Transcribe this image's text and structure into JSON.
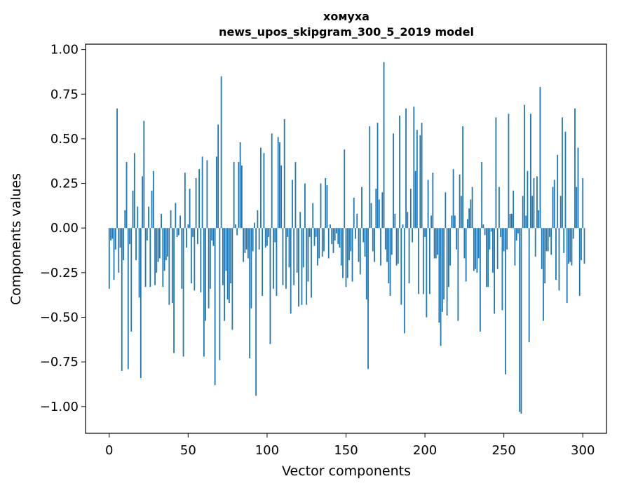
{
  "chart_data": {
    "type": "bar",
    "title_line1": "хомуха",
    "title_line2": "news_upos_skipgram_300_5_2019 model",
    "xlabel": "Vector components",
    "ylabel": "Components values",
    "xlim": [
      -15,
      315
    ],
    "ylim": [
      -1.15,
      1.03
    ],
    "xticks": [
      0,
      50,
      100,
      150,
      200,
      250,
      300
    ],
    "xtick_labels": [
      "0",
      "50",
      "100",
      "150",
      "200",
      "250",
      "300"
    ],
    "yticks": [
      1.0,
      0.75,
      0.5,
      0.25,
      0.0,
      -0.25,
      -0.5,
      -0.75,
      -1.0
    ],
    "ytick_labels": [
      "1.00",
      "0.75",
      "0.50",
      "0.25",
      "0.00",
      "−0.25",
      "−0.50",
      "−0.75",
      "−1.00"
    ],
    "bar_color": "#1f77b4",
    "values": [
      -0.34,
      -0.07,
      -0.06,
      -0.29,
      -0.12,
      0.67,
      -0.25,
      -0.11,
      -0.8,
      -0.18,
      0.1,
      0.37,
      -0.79,
      -0.09,
      -0.58,
      0.21,
      0.42,
      -0.18,
      0.12,
      -0.39,
      -0.84,
      0.29,
      0.6,
      -0.33,
      -0.07,
      0.12,
      -0.33,
      0.21,
      0.32,
      -0.32,
      -0.25,
      -0.19,
      -0.17,
      0.08,
      -0.33,
      -0.24,
      -0.18,
      -0.16,
      -0.43,
      0.1,
      -0.42,
      -0.7,
      0.14,
      -0.05,
      -0.04,
      0.07,
      -0.34,
      -0.72,
      0.31,
      -0.11,
      0.02,
      0.22,
      -0.31,
      -0.05,
      -0.35,
      0.28,
      -0.09,
      0.33,
      -0.36,
      0.4,
      -0.72,
      -0.52,
      0.38,
      -0.45,
      -0.34,
      -0.07,
      -0.1,
      -0.88,
      0.4,
      0.58,
      -0.74,
      0.85,
      -0.32,
      -0.52,
      -0.24,
      -0.4,
      -0.42,
      -0.31,
      -0.57,
      0.37,
      0.02,
      -0.04,
      0.37,
      0.48,
      0.35,
      -0.19,
      -0.14,
      -0.12,
      -0.17,
      -0.73,
      -0.45,
      -0.13,
      0.03,
      -0.94,
      0.1,
      -0.12,
      0.45,
      -0.38,
      0.42,
      -0.11,
      -0.1,
      -0.05,
      -0.65,
      0.53,
      -0.34,
      -0.08,
      -0.38,
      0.51,
      0.48,
      0.35,
      -0.32,
      0.61,
      -0.34,
      -0.05,
      -0.22,
      -0.48,
      0.27,
      -0.32,
      0.37,
      -0.25,
      -0.44,
      0.09,
      -0.43,
      -0.22,
      0.25,
      -0.43,
      -0.3,
      -0.05,
      -0.39,
      0.14,
      -0.1,
      -0.05,
      -0.21,
      -0.17,
      0.25,
      -0.16,
      -0.13,
      0.28,
      0.24,
      -0.17,
      0.02,
      -0.09,
      -0.14,
      -0.07,
      -0.03,
      -0.09,
      -0.11,
      -0.21,
      -0.28,
      0.44,
      -0.33,
      -0.28,
      -0.18,
      -0.13,
      -0.3,
      0.17,
      -0.06,
      0.08,
      -0.19,
      -0.26,
      0.23,
      -0.08,
      -0.16,
      -0.4,
      -0.79,
      0.57,
      0.14,
      -0.13,
      -0.19,
      0.22,
      0.59,
      0.16,
      -0.21,
      0.2,
      0.93,
      -0.12,
      -0.19,
      -0.31,
      -0.38,
      -0.15,
      0.53,
      0.08,
      -0.21,
      -0.2,
      0.63,
      -0.43,
      0.02,
      -0.59,
      0.67,
      0.09,
      -0.31,
      0.22,
      -0.08,
      0.68,
      0.32,
      0.55,
      -0.37,
      0.52,
      0.59,
      -0.37,
      -0.05,
      -0.5,
      0.27,
      -0.37,
      0.07,
      0.31,
      -0.17,
      -0.17,
      -0.15,
      -0.53,
      -0.66,
      -0.47,
      -0.4,
      0.2,
      -0.49,
      -0.33,
      -0.21,
      0.07,
      0.33,
      0.07,
      -0.12,
      -0.52,
      0.3,
      0.18,
      0.57,
      -0.17,
      -0.3,
      0.05,
      0.11,
      0.16,
      0.23,
      -0.24,
      -0.23,
      -0.25,
      -0.17,
      -0.58,
      0.37,
      0.02,
      -0.04,
      -0.33,
      -0.33,
      -0.12,
      -0.02,
      -0.25,
      -0.48,
      0.62,
      -0.23,
      0.23,
      -0.05,
      -0.46,
      -0.13,
      -0.82,
      -0.12,
      0.64,
      0.08,
      0.08,
      0.21,
      -0.21,
      -0.07,
      -0.03,
      -1.03,
      -1.04,
      0.18,
      0.69,
      0.07,
      0.32,
      -0.64,
      0.64,
      0.18,
      0.28,
      -0.16,
      0.29,
      0.1,
      0.79,
      -0.23,
      -0.52,
      -0.31,
      -0.13,
      -0.13,
      -0.05,
      -0.15,
      0.23,
      0.27,
      -0.29,
      0.41,
      -0.35,
      0.18,
      0.62,
      -0.14,
      0.54,
      -0.42,
      -0.2,
      -0.19,
      -0.21,
      -0.06,
      0.67,
      0.23,
      0.45,
      -0.38,
      -0.18,
      0.28,
      -0.2
    ]
  }
}
